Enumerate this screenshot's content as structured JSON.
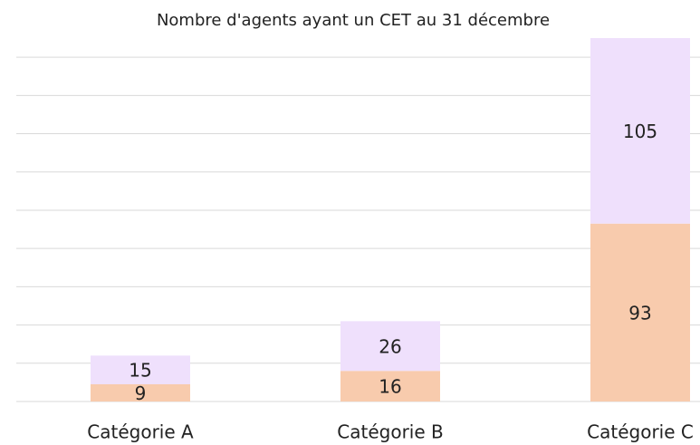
{
  "chart_data": {
    "type": "stacked_bar",
    "title": "Nombre d'agents ayant un CET au 31 décembre",
    "categories": [
      "Catégorie A",
      "Catégorie B",
      "Catégorie C"
    ],
    "series": [
      {
        "color": "#f8cbad",
        "values": [
          9,
          16,
          93
        ]
      },
      {
        "color": "#efe0fc",
        "values": [
          15,
          26,
          105
        ]
      }
    ],
    "ylim": [
      0,
      190
    ],
    "yticks": [
      0,
      20,
      40,
      60,
      80,
      100,
      120,
      140,
      160,
      180
    ],
    "grid": true
  }
}
